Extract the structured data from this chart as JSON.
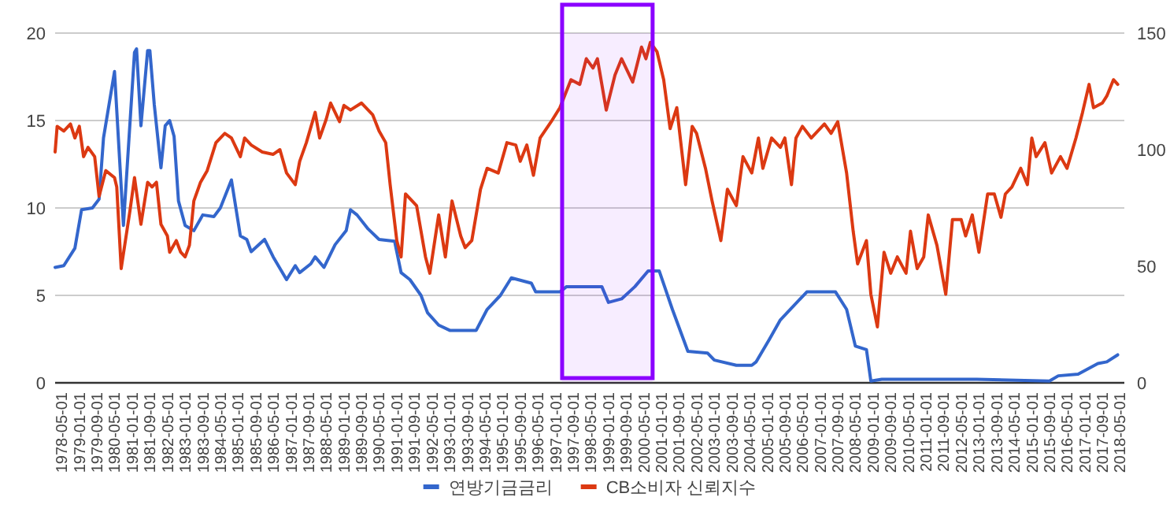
{
  "chart_data": {
    "type": "line",
    "xlim": [
      "1978-02-01",
      "2018-07-01"
    ],
    "xticks": [
      "1978-05-01",
      "1979-01-01",
      "1979-09-01",
      "1980-05-01",
      "1981-01-01",
      "1981-09-01",
      "1982-05-01",
      "1983-01-01",
      "1983-09-01",
      "1984-05-01",
      "1985-01-01",
      "1985-09-01",
      "1986-05-01",
      "1987-01-01",
      "1987-09-01",
      "1988-05-01",
      "1989-01-01",
      "1989-09-01",
      "1990-05-01",
      "1991-01-01",
      "1991-09-01",
      "1992-05-01",
      "1993-01-01",
      "1993-09-01",
      "1994-05-01",
      "1995-01-01",
      "1995-09-01",
      "1996-05-01",
      "1997-01-01",
      "1997-09-01",
      "1998-05-01",
      "1999-01-01",
      "1999-09-01",
      "2000-05-01",
      "2001-01-01",
      "2001-09-01",
      "2002-05-01",
      "2003-01-01",
      "2003-09-01",
      "2004-05-01",
      "2005-01-01",
      "2005-09-01",
      "2006-05-01",
      "2007-01-01",
      "2007-09-01",
      "2008-05-01",
      "2009-01-01",
      "2009-09-01",
      "2010-05-01",
      "2011-01-01",
      "2011-09-01",
      "2012-05-01",
      "2013-01-01",
      "2013-09-01",
      "2014-05-01",
      "2015-01-01",
      "2015-09-01",
      "2016-05-01",
      "2017-01-01",
      "2017-09-01",
      "2018-05-01"
    ],
    "ylim": [
      0,
      20
    ],
    "yticks": [
      0,
      5,
      10,
      15,
      20
    ],
    "y2lim": [
      0,
      150
    ],
    "y2ticks": [
      0,
      50,
      100,
      150
    ],
    "grid": "y",
    "legend": "bottom",
    "line_style": "solid",
    "bands": [
      {
        "axis": "x",
        "from": "1997-04",
        "to": "2000-09",
        "color": "#8b00ff"
      }
    ],
    "series": [
      {
        "name": "연방기금금리",
        "color": "#3366cc",
        "x": [
          "1978-02",
          "1978-06",
          "1978-11",
          "1979-02",
          "1979-07",
          "1979-10",
          "1979-12",
          "1980-05",
          "1980-09",
          "1981-02",
          "1981-03",
          "1981-05",
          "1981-08",
          "1981-09",
          "1981-11",
          "1982-02",
          "1982-04",
          "1982-06",
          "1982-08",
          "1982-10",
          "1983-01",
          "1983-05",
          "1983-09",
          "1984-02",
          "1984-05",
          "1984-10",
          "1985-02",
          "1985-05",
          "1985-07",
          "1986-01",
          "1986-05",
          "1986-11",
          "1987-03",
          "1987-05",
          "1987-10",
          "1987-12",
          "1988-04",
          "1988-09",
          "1989-02",
          "1989-04",
          "1989-07",
          "1989-12",
          "1990-05",
          "1990-12",
          "1991-03",
          "1991-07",
          "1991-12",
          "1992-03",
          "1992-08",
          "1993-01",
          "1994-01",
          "1994-06",
          "1994-12",
          "1995-05",
          "1996-02",
          "1996-04",
          "1997-03",
          "1997-06",
          "1998-10",
          "1999-01",
          "1999-07",
          "2000-01",
          "2000-07",
          "2000-12",
          "2001-06",
          "2002-01",
          "2002-10",
          "2003-01",
          "2003-11",
          "2004-06",
          "2004-08",
          "2005-02",
          "2005-07",
          "2006-07",
          "2007-08",
          "2008-01",
          "2008-05",
          "2008-10",
          "2008-12",
          "2009-05",
          "2010-07",
          "2012-12",
          "2015-09",
          "2016-01",
          "2016-10",
          "2017-07",
          "2017-11",
          "2018-04"
        ],
        "values": [
          6.6,
          6.7,
          7.7,
          9.9,
          10.0,
          10.5,
          14.0,
          17.8,
          9.0,
          18.9,
          19.1,
          14.7,
          19.0,
          19.0,
          15.9,
          12.3,
          14.7,
          15.0,
          14.1,
          10.4,
          9.0,
          8.7,
          9.6,
          9.5,
          10.0,
          11.6,
          8.4,
          8.2,
          7.5,
          8.2,
          7.2,
          5.9,
          6.7,
          6.3,
          6.8,
          7.2,
          6.6,
          7.9,
          8.7,
          9.9,
          9.6,
          8.8,
          8.2,
          8.1,
          6.3,
          5.9,
          5.0,
          4.0,
          3.3,
          3.0,
          3.0,
          4.2,
          5.0,
          6.0,
          5.7,
          5.2,
          5.2,
          5.5,
          5.5,
          4.6,
          4.8,
          5.5,
          6.4,
          6.4,
          4.2,
          1.8,
          1.7,
          1.3,
          1.0,
          1.0,
          1.2,
          2.5,
          3.6,
          5.2,
          5.2,
          4.2,
          2.1,
          1.9,
          0.1,
          0.2,
          0.2,
          0.2,
          0.1,
          0.4,
          0.5,
          1.1,
          1.2,
          1.6
        ]
      },
      {
        "name": "CB소비자 신뢰지수",
        "color": "#dc3912",
        "axis": "y2",
        "x": [
          "1978-02",
          "1978-03",
          "1978-06",
          "1978-09",
          "1978-11",
          "1979-01",
          "1979-03",
          "1979-05",
          "1979-08",
          "1979-10",
          "1980-01",
          "1980-05",
          "1980-06",
          "1980-08",
          "1980-12",
          "1981-02",
          "1981-05",
          "1981-08",
          "1981-10",
          "1981-12",
          "1982-02",
          "1982-05",
          "1982-06",
          "1982-09",
          "1982-11",
          "1983-01",
          "1983-03",
          "1983-05",
          "1983-08",
          "1983-11",
          "1984-03",
          "1984-07",
          "1984-10",
          "1985-02",
          "1985-04",
          "1985-07",
          "1985-12",
          "1986-05",
          "1986-08",
          "1986-11",
          "1987-03",
          "1987-05",
          "1987-08",
          "1987-12",
          "1988-02",
          "1988-05",
          "1988-07",
          "1988-11",
          "1989-01",
          "1989-04",
          "1989-09",
          "1990-02",
          "1990-05",
          "1990-08",
          "1990-10",
          "1991-01",
          "1991-03",
          "1991-05",
          "1991-10",
          "1992-02",
          "1992-04",
          "1992-08",
          "1992-11",
          "1993-02",
          "1993-06",
          "1993-08",
          "1993-11",
          "1994-03",
          "1994-06",
          "1994-11",
          "1995-03",
          "1995-07",
          "1995-09",
          "1995-12",
          "1996-03",
          "1996-06",
          "1996-11",
          "1997-03",
          "1997-08",
          "1997-12",
          "1998-03",
          "1998-06",
          "1998-08",
          "1998-12",
          "1999-04",
          "1999-07",
          "1999-12",
          "2000-04",
          "2000-06",
          "2000-08",
          "2000-11",
          "2001-02",
          "2001-05",
          "2001-08",
          "2001-12",
          "2002-03",
          "2002-05",
          "2002-09",
          "2002-12",
          "2003-04",
          "2003-07",
          "2003-11",
          "2004-02",
          "2004-06",
          "2004-09",
          "2004-11",
          "2005-03",
          "2005-07",
          "2005-09",
          "2005-12",
          "2006-02",
          "2006-05",
          "2006-09",
          "2007-03",
          "2007-06",
          "2007-09",
          "2008-01",
          "2008-04",
          "2008-06",
          "2008-10",
          "2008-12",
          "2009-03",
          "2009-06",
          "2009-09",
          "2009-12",
          "2010-04",
          "2010-06",
          "2010-09",
          "2010-12",
          "2011-02",
          "2011-06",
          "2011-10",
          "2012-01",
          "2012-05",
          "2012-07",
          "2012-10",
          "2013-01",
          "2013-05",
          "2013-08",
          "2013-11",
          "2014-01",
          "2014-04",
          "2014-08",
          "2014-11",
          "2015-01",
          "2015-03",
          "2015-07",
          "2015-10",
          "2016-02",
          "2016-05",
          "2016-09",
          "2016-12",
          "2017-03",
          "2017-05",
          "2017-09",
          "2017-11",
          "2018-02",
          "2018-04"
        ],
        "values": [
          99,
          110,
          108,
          111,
          105,
          110,
          97,
          101,
          97,
          80,
          91,
          88,
          84,
          49,
          74,
          88,
          68,
          86,
          84,
          86,
          68,
          63,
          56,
          61,
          56,
          54,
          59,
          78,
          86,
          91,
          103,
          107,
          105,
          97,
          105,
          102,
          99,
          98,
          100,
          90,
          85,
          95,
          103,
          116,
          105,
          113,
          120,
          112,
          119,
          117,
          120,
          115,
          108,
          103,
          85,
          61,
          54,
          81,
          76,
          54,
          47,
          72,
          54,
          78,
          63,
          58,
          61,
          83,
          92,
          90,
          103,
          102,
          95,
          102,
          89,
          105,
          112,
          118,
          130,
          128,
          139,
          135,
          139,
          117,
          132,
          139,
          129,
          144,
          139,
          146,
          142,
          130,
          109,
          118,
          85,
          110,
          107,
          92,
          78,
          61,
          83,
          76,
          97,
          90,
          105,
          92,
          105,
          101,
          105,
          85,
          105,
          110,
          105,
          111,
          107,
          112,
          90,
          65,
          51,
          61,
          38,
          24,
          56,
          47,
          54,
          47,
          65,
          49,
          54,
          72,
          59,
          38,
          70,
          70,
          63,
          72,
          56,
          81,
          81,
          71,
          81,
          84,
          92,
          85,
          105,
          97,
          103,
          90,
          97,
          92,
          105,
          116,
          128,
          118,
          120,
          123,
          130,
          128
        ]
      }
    ]
  }
}
